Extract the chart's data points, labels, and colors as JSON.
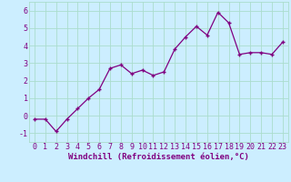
{
  "x": [
    0,
    1,
    2,
    3,
    4,
    5,
    6,
    7,
    8,
    9,
    10,
    11,
    12,
    13,
    14,
    15,
    16,
    17,
    18,
    19,
    20,
    21,
    22,
    23
  ],
  "y": [
    -0.2,
    -0.2,
    -0.9,
    -0.2,
    0.4,
    1.0,
    1.5,
    2.7,
    2.9,
    2.4,
    2.6,
    2.3,
    2.5,
    3.8,
    4.5,
    5.1,
    4.6,
    5.9,
    5.3,
    3.5,
    3.6,
    3.6,
    3.5,
    4.2
  ],
  "line_color": "#800080",
  "marker_color": "#800080",
  "bg_color": "#cceeff",
  "grid_color": "#aaddcc",
  "xlabel": "Windchill (Refroidissement éolien,°C)",
  "xlabel_color": "#800080",
  "ylim": [
    -1.5,
    6.5
  ],
  "xlim": [
    -0.5,
    23.5
  ],
  "yticks": [
    -1,
    0,
    1,
    2,
    3,
    4,
    5,
    6
  ],
  "xtick_labels": [
    "0",
    "1",
    "2",
    "3",
    "4",
    "5",
    "6",
    "7",
    "8",
    "9",
    "10",
    "11",
    "12",
    "13",
    "14",
    "15",
    "16",
    "17",
    "18",
    "19",
    "20",
    "21",
    "22",
    "23"
  ],
  "tick_color": "#800080",
  "label_fontsize": 6.5,
  "tick_fontsize": 6.0
}
